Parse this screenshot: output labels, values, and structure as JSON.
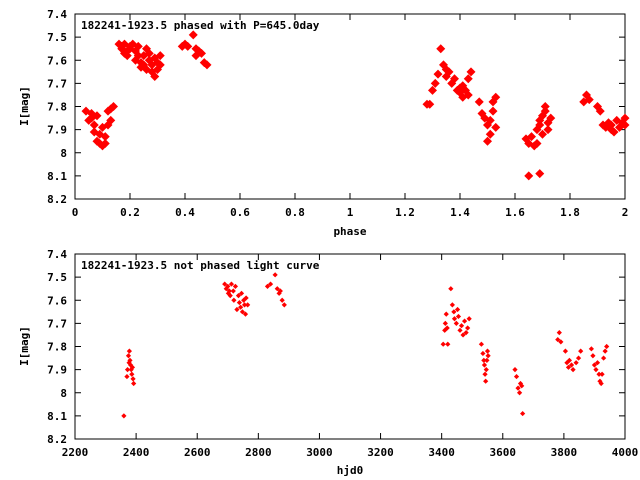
{
  "chart_data": [
    {
      "type": "scatter",
      "title": "182241-1923.5 phased with P=645.0day",
      "xlabel": "phase",
      "ylabel": "I[mag]",
      "xlim": [
        0,
        2
      ],
      "ylim": [
        7.4,
        8.2
      ],
      "y_inverted": true,
      "x_ticks": [
        "0",
        "0.2",
        "0.4",
        "0.6",
        "0.8",
        "1",
        "1.2",
        "1.4",
        "1.6",
        "1.8",
        "2"
      ],
      "y_ticks": [
        "7.4",
        "7.5",
        "7.6",
        "7.7",
        "7.8",
        "7.9",
        "8",
        "8.1",
        "8.2"
      ],
      "marker": "filled-diamond",
      "color": "#ff0000",
      "grid": false,
      "series": [
        {
          "points": [
            [
              0.04,
              7.82
            ],
            [
              0.05,
              7.86
            ],
            [
              0.06,
              7.85
            ],
            [
              0.06,
              7.83
            ],
            [
              0.07,
              7.88
            ],
            [
              0.07,
              7.91
            ],
            [
              0.08,
              7.84
            ],
            [
              0.08,
              7.95
            ],
            [
              0.09,
              7.96
            ],
            [
              0.09,
              7.92
            ],
            [
              0.1,
              7.89
            ],
            [
              0.1,
              7.97
            ],
            [
              0.11,
              7.93
            ],
            [
              0.11,
              7.96
            ],
            [
              0.12,
              7.88
            ],
            [
              0.12,
              7.82
            ],
            [
              0.13,
              7.86
            ],
            [
              0.13,
              7.81
            ],
            [
              0.14,
              7.8
            ],
            [
              0.16,
              7.53
            ],
            [
              0.17,
              7.55
            ],
            [
              0.17,
              7.54
            ],
            [
              0.18,
              7.57
            ],
            [
              0.18,
              7.53
            ],
            [
              0.19,
              7.56
            ],
            [
              0.19,
              7.58
            ],
            [
              0.2,
              7.55
            ],
            [
              0.2,
              7.54
            ],
            [
              0.21,
              7.53
            ],
            [
              0.22,
              7.6
            ],
            [
              0.22,
              7.56
            ],
            [
              0.23,
              7.58
            ],
            [
              0.23,
              7.54
            ],
            [
              0.24,
              7.61
            ],
            [
              0.24,
              7.63
            ],
            [
              0.25,
              7.58
            ],
            [
              0.25,
              7.62
            ],
            [
              0.26,
              7.55
            ],
            [
              0.26,
              7.64
            ],
            [
              0.27,
              7.6
            ],
            [
              0.27,
              7.57
            ],
            [
              0.28,
              7.65
            ],
            [
              0.28,
              7.62
            ],
            [
              0.29,
              7.59
            ],
            [
              0.29,
              7.67
            ],
            [
              0.3,
              7.61
            ],
            [
              0.3,
              7.64
            ],
            [
              0.31,
              7.58
            ],
            [
              0.31,
              7.62
            ],
            [
              0.39,
              7.54
            ],
            [
              0.4,
              7.53
            ],
            [
              0.41,
              7.54
            ],
            [
              0.43,
              7.49
            ],
            [
              0.44,
              7.55
            ],
            [
              0.44,
              7.58
            ],
            [
              0.45,
              7.56
            ],
            [
              0.46,
              7.57
            ],
            [
              0.47,
              7.61
            ],
            [
              0.48,
              7.62
            ],
            [
              1.28,
              7.79
            ],
            [
              1.29,
              7.79
            ],
            [
              1.3,
              7.73
            ],
            [
              1.31,
              7.7
            ],
            [
              1.32,
              7.66
            ],
            [
              1.33,
              7.55
            ],
            [
              1.34,
              7.62
            ],
            [
              1.35,
              7.64
            ],
            [
              1.35,
              7.67
            ],
            [
              1.36,
              7.65
            ],
            [
              1.37,
              7.7
            ],
            [
              1.38,
              7.68
            ],
            [
              1.39,
              7.73
            ],
            [
              1.4,
              7.72
            ],
            [
              1.4,
              7.74
            ],
            [
              1.41,
              7.76
            ],
            [
              1.41,
              7.71
            ],
            [
              1.42,
              7.73
            ],
            [
              1.43,
              7.68
            ],
            [
              1.43,
              7.75
            ],
            [
              1.44,
              7.65
            ],
            [
              1.47,
              7.78
            ],
            [
              1.48,
              7.83
            ],
            [
              1.49,
              7.85
            ],
            [
              1.5,
              7.88
            ],
            [
              1.5,
              7.95
            ],
            [
              1.51,
              7.92
            ],
            [
              1.51,
              7.86
            ],
            [
              1.52,
              7.78
            ],
            [
              1.52,
              7.82
            ],
            [
              1.53,
              7.76
            ],
            [
              1.53,
              7.89
            ],
            [
              1.64,
              7.94
            ],
            [
              1.65,
              7.96
            ],
            [
              1.65,
              8.1
            ],
            [
              1.66,
              7.93
            ],
            [
              1.67,
              7.97
            ],
            [
              1.68,
              7.9
            ],
            [
              1.69,
              7.88
            ],
            [
              1.69,
              7.86
            ],
            [
              1.7,
              7.84
            ],
            [
              1.7,
              7.92
            ],
            [
              1.71,
              7.82
            ],
            [
              1.71,
              7.8
            ],
            [
              1.72,
              7.87
            ],
            [
              1.72,
              7.9
            ],
            [
              1.73,
              7.85
            ],
            [
              1.69,
              8.09
            ],
            [
              1.68,
              7.96
            ],
            [
              1.85,
              7.78
            ],
            [
              1.86,
              7.75
            ],
            [
              1.87,
              7.77
            ],
            [
              1.9,
              7.8
            ],
            [
              1.91,
              7.82
            ],
            [
              1.92,
              7.88
            ],
            [
              1.93,
              7.89
            ],
            [
              1.94,
              7.87
            ],
            [
              1.95,
              7.9
            ],
            [
              1.95,
              7.88
            ],
            [
              1.96,
              7.91
            ],
            [
              1.97,
              7.86
            ],
            [
              1.98,
              7.89
            ],
            [
              1.99,
              7.87
            ],
            [
              2.0,
              7.85
            ],
            [
              2.0,
              7.88
            ]
          ]
        }
      ]
    },
    {
      "type": "scatter",
      "title": "182241-1923.5 not phased light curve",
      "xlabel": "hjd0",
      "ylabel": "I[mag]",
      "xlim": [
        2200,
        4000
      ],
      "ylim": [
        7.4,
        8.2
      ],
      "y_inverted": true,
      "x_ticks": [
        "2200",
        "2400",
        "2600",
        "2800",
        "3000",
        "3200",
        "3400",
        "3600",
        "3800",
        "4000"
      ],
      "y_ticks": [
        "7.4",
        "7.5",
        "7.6",
        "7.7",
        "7.8",
        "7.9",
        "8",
        "8.1",
        "8.2"
      ],
      "marker": "small-diamond",
      "color": "#ff0000",
      "grid": false,
      "series": [
        {
          "points": [
            [
              2360,
              8.1
            ],
            [
              2370,
              7.93
            ],
            [
              2372,
              7.9
            ],
            [
              2375,
              7.84
            ],
            [
              2377,
              7.87
            ],
            [
              2378,
              7.82
            ],
            [
              2380,
              7.86
            ],
            [
              2382,
              7.88
            ],
            [
              2384,
              7.9
            ],
            [
              2386,
              7.92
            ],
            [
              2388,
              7.89
            ],
            [
              2390,
              7.94
            ],
            [
              2392,
              7.96
            ],
            [
              2690,
              7.53
            ],
            [
              2695,
              7.55
            ],
            [
              2700,
              7.54
            ],
            [
              2702,
              7.57
            ],
            [
              2705,
              7.56
            ],
            [
              2708,
              7.58
            ],
            [
              2712,
              7.53
            ],
            [
              2718,
              7.56
            ],
            [
              2720,
              7.6
            ],
            [
              2725,
              7.54
            ],
            [
              2730,
              7.64
            ],
            [
              2735,
              7.58
            ],
            [
              2738,
              7.61
            ],
            [
              2742,
              7.63
            ],
            [
              2745,
              7.57
            ],
            [
              2748,
              7.65
            ],
            [
              2752,
              7.6
            ],
            [
              2755,
              7.62
            ],
            [
              2758,
              7.66
            ],
            [
              2760,
              7.59
            ],
            [
              2765,
              7.62
            ],
            [
              2830,
              7.54
            ],
            [
              2840,
              7.53
            ],
            [
              2855,
              7.49
            ],
            [
              2862,
              7.55
            ],
            [
              2868,
              7.57
            ],
            [
              2872,
              7.56
            ],
            [
              2878,
              7.6
            ],
            [
              2885,
              7.62
            ],
            [
              3405,
              7.79
            ],
            [
              3410,
              7.73
            ],
            [
              3412,
              7.7
            ],
            [
              3415,
              7.66
            ],
            [
              3418,
              7.72
            ],
            [
              3420,
              7.79
            ],
            [
              3430,
              7.55
            ],
            [
              3435,
              7.62
            ],
            [
              3440,
              7.65
            ],
            [
              3442,
              7.68
            ],
            [
              3448,
              7.7
            ],
            [
              3452,
              7.64
            ],
            [
              3455,
              7.67
            ],
            [
              3460,
              7.73
            ],
            [
              3465,
              7.71
            ],
            [
              3470,
              7.75
            ],
            [
              3475,
              7.69
            ],
            [
              3480,
              7.74
            ],
            [
              3485,
              7.72
            ],
            [
              3490,
              7.68
            ],
            [
              3530,
              7.79
            ],
            [
              3535,
              7.83
            ],
            [
              3538,
              7.86
            ],
            [
              3540,
              7.88
            ],
            [
              3542,
              7.92
            ],
            [
              3544,
              7.95
            ],
            [
              3546,
              7.9
            ],
            [
              3548,
              7.86
            ],
            [
              3550,
              7.82
            ],
            [
              3552,
              7.84
            ],
            [
              3640,
              7.9
            ],
            [
              3645,
              7.93
            ],
            [
              3650,
              7.98
            ],
            [
              3655,
              8.0
            ],
            [
              3658,
              7.96
            ],
            [
              3662,
              7.97
            ],
            [
              3665,
              8.09
            ],
            [
              3780,
              7.77
            ],
            [
              3785,
              7.74
            ],
            [
              3790,
              7.78
            ],
            [
              3805,
              7.82
            ],
            [
              3810,
              7.87
            ],
            [
              3815,
              7.89
            ],
            [
              3818,
              7.86
            ],
            [
              3825,
              7.88
            ],
            [
              3830,
              7.9
            ],
            [
              3840,
              7.87
            ],
            [
              3848,
              7.85
            ],
            [
              3855,
              7.82
            ],
            [
              3890,
              7.81
            ],
            [
              3895,
              7.84
            ],
            [
              3900,
              7.88
            ],
            [
              3905,
              7.9
            ],
            [
              3910,
              7.87
            ],
            [
              3915,
              7.92
            ],
            [
              3918,
              7.95
            ],
            [
              3922,
              7.96
            ],
            [
              3925,
              7.92
            ],
            [
              3930,
              7.85
            ],
            [
              3935,
              7.82
            ],
            [
              3940,
              7.8
            ]
          ]
        }
      ]
    }
  ]
}
